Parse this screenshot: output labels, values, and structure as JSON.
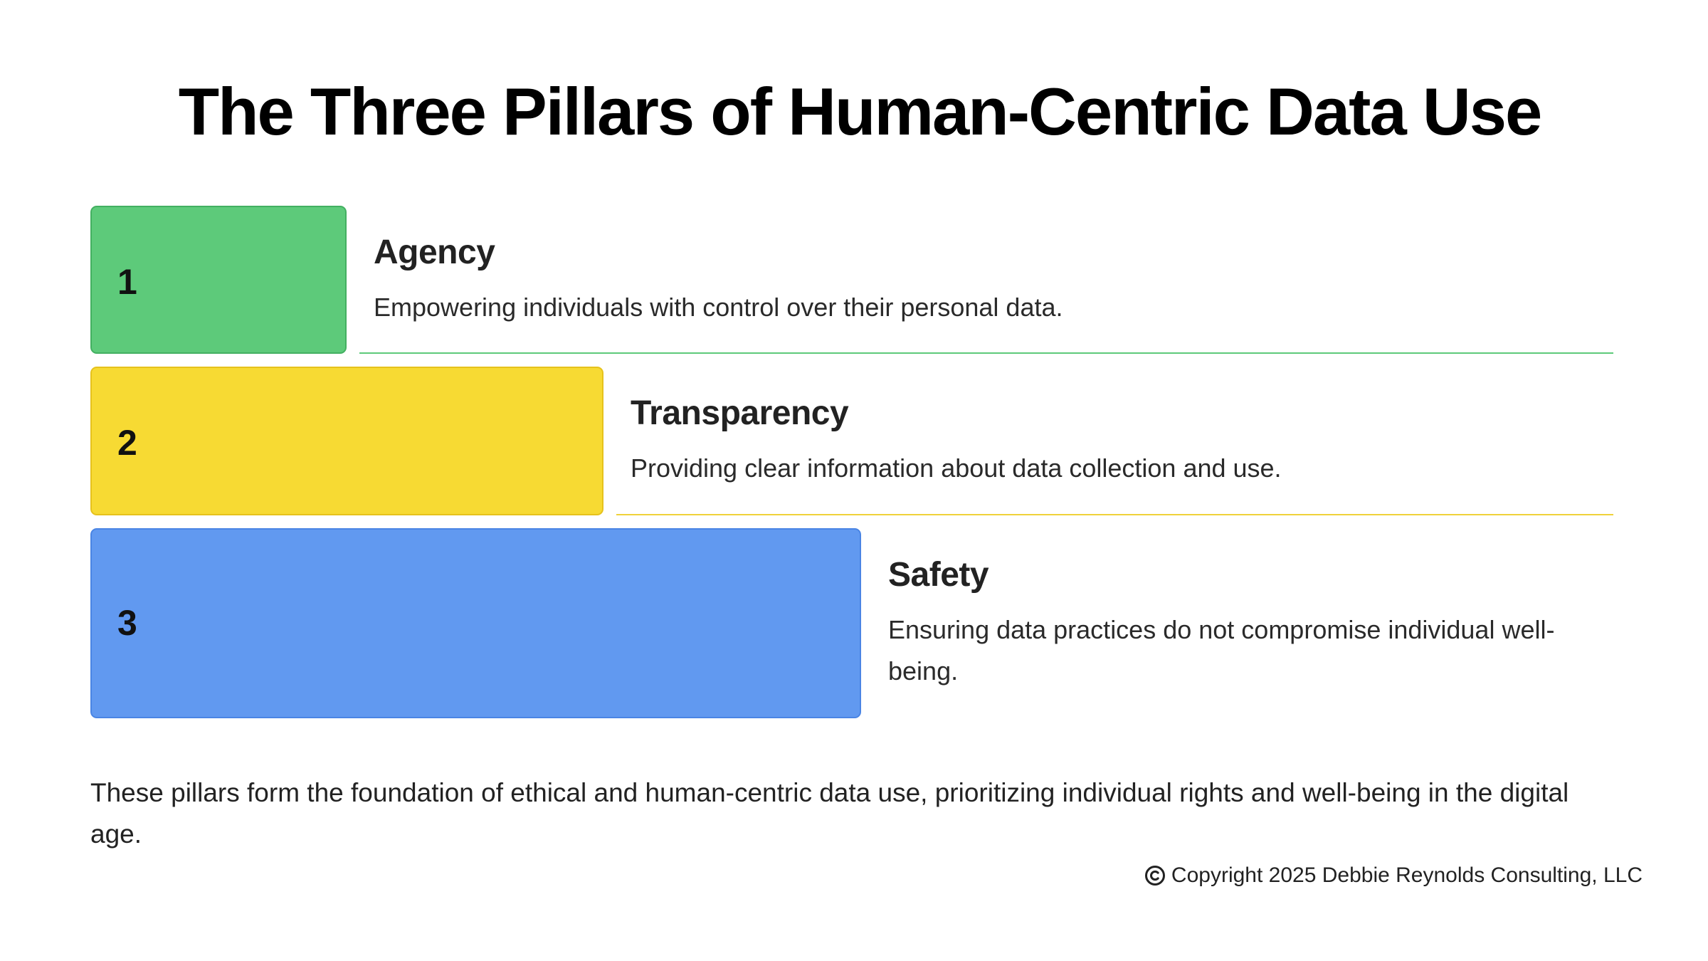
{
  "title": "The Three Pillars of Human-Centric Data Use",
  "pillars": [
    {
      "number": "1",
      "name": "Agency",
      "description": "Empowering individuals with control over their personal data.",
      "color": "#5dca7a"
    },
    {
      "number": "2",
      "name": "Transparency",
      "description": "Providing clear information about data collection and use.",
      "color": "#f7da33"
    },
    {
      "number": "3",
      "name": "Safety",
      "description": "Ensuring data practices do not compromise individual well-being.",
      "color": "#6199f0"
    }
  ],
  "summary": "These pillars form the foundation of ethical and human-centric data use, prioritizing individual rights and well-being in the digital age.",
  "footer": {
    "icon": "copyright-icon",
    "text": "Copyright 2025 Debbie Reynolds Consulting, LLC"
  }
}
